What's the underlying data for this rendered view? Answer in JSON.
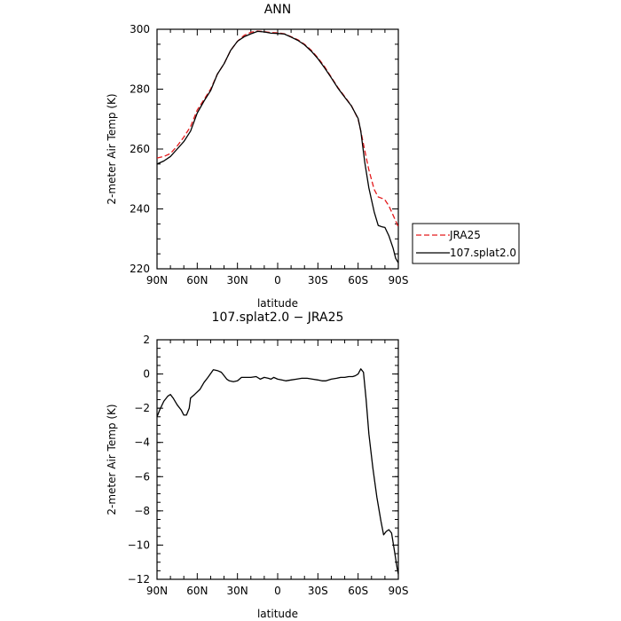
{
  "chart_data": [
    {
      "type": "line",
      "title": "ANN",
      "xlabel": "latitude",
      "ylabel": "2-meter Air Temp (K)",
      "xlim": [
        90,
        -90
      ],
      "ylim": [
        220,
        300
      ],
      "x_ticks": [
        90,
        60,
        30,
        0,
        -30,
        -60,
        -90
      ],
      "x_tick_labels": [
        "90N",
        "60N",
        "30N",
        "0",
        "30S",
        "60S",
        "90S"
      ],
      "y_ticks": [
        220,
        240,
        260,
        280,
        300
      ],
      "y_tick_labels": [
        "220",
        "240",
        "260",
        "280",
        "300"
      ],
      "grid": false,
      "legend": "right",
      "series": [
        {
          "name": "JRA25",
          "color": "#e31a1c",
          "dash": "dashed",
          "points": [
            [
              90,
              257
            ],
            [
              85,
              257.5
            ],
            [
              80,
              258.5
            ],
            [
              75,
              261
            ],
            [
              70,
              264
            ],
            [
              65,
              267.5
            ],
            [
              60,
              273
            ],
            [
              55,
              276.5
            ],
            [
              50,
              280
            ],
            [
              45,
              285
            ],
            [
              40,
              288.5
            ],
            [
              35,
              293
            ],
            [
              30,
              296
            ],
            [
              25,
              298
            ],
            [
              20,
              299
            ],
            [
              15,
              299.4
            ],
            [
              10,
              299.2
            ],
            [
              5,
              298.9
            ],
            [
              0,
              298.8
            ],
            [
              -5,
              298.5
            ],
            [
              -10,
              297.5
            ],
            [
              -15,
              296.5
            ],
            [
              -20,
              295
            ],
            [
              -25,
              293
            ],
            [
              -30,
              290.5
            ],
            [
              -35,
              287.5
            ],
            [
              -40,
              284
            ],
            [
              -45,
              280.5
            ],
            [
              -50,
              277.5
            ],
            [
              -55,
              274.5
            ],
            [
              -60,
              270
            ],
            [
              -62,
              266
            ],
            [
              -65,
              259.5
            ],
            [
              -68,
              253
            ],
            [
              -72,
              246.5
            ],
            [
              -75,
              244
            ],
            [
              -78,
              243.5
            ],
            [
              -80,
              243
            ],
            [
              -83,
              241
            ],
            [
              -86,
              238
            ],
            [
              -88,
              236
            ],
            [
              -90,
              234
            ]
          ]
        },
        {
          "name": "107.splat2.0",
          "color": "#000000",
          "dash": "solid",
          "points": [
            [
              90,
              255
            ],
            [
              85,
              256
            ],
            [
              80,
              257.5
            ],
            [
              75,
              260
            ],
            [
              70,
              262.5
            ],
            [
              65,
              266
            ],
            [
              60,
              272
            ],
            [
              55,
              276
            ],
            [
              50,
              279.5
            ],
            [
              45,
              285
            ],
            [
              40,
              288.5
            ],
            [
              35,
              293
            ],
            [
              30,
              296
            ],
            [
              25,
              297.5
            ],
            [
              20,
              298.5
            ],
            [
              15,
              299.3
            ],
            [
              10,
              299.1
            ],
            [
              5,
              298.7
            ],
            [
              0,
              298.6
            ],
            [
              -5,
              298.4
            ],
            [
              -10,
              297.4
            ],
            [
              -15,
              296.3
            ],
            [
              -20,
              294.8
            ],
            [
              -25,
              292.7
            ],
            [
              -30,
              290.2
            ],
            [
              -35,
              287.1
            ],
            [
              -40,
              283.8
            ],
            [
              -45,
              280.3
            ],
            [
              -50,
              277.3
            ],
            [
              -55,
              274.4
            ],
            [
              -60,
              270.2
            ],
            [
              -62,
              266
            ],
            [
              -65,
              255.5
            ],
            [
              -68,
              247
            ],
            [
              -72,
              239
            ],
            [
              -75,
              234.5
            ],
            [
              -78,
              234
            ],
            [
              -80,
              233.8
            ],
            [
              -83,
              231
            ],
            [
              -86,
              227
            ],
            [
              -88,
              223.5
            ],
            [
              -90,
              222
            ]
          ]
        }
      ]
    },
    {
      "type": "line",
      "title": "107.splat2.0 − JRA25",
      "xlabel": "latitude",
      "ylabel": "2-meter Air Temp (K)",
      "xlim": [
        90,
        -90
      ],
      "ylim": [
        -12,
        2
      ],
      "x_ticks": [
        90,
        60,
        30,
        0,
        -30,
        -60,
        -90
      ],
      "x_tick_labels": [
        "90N",
        "60N",
        "30N",
        "0",
        "30S",
        "60S",
        "90S"
      ],
      "y_ticks": [
        -12,
        -10,
        -8,
        -6,
        -4,
        -2,
        0,
        2
      ],
      "y_tick_labels": [
        "−12",
        "−10",
        "−8",
        "−6",
        "−4",
        "−2",
        "0",
        "2"
      ],
      "grid": false,
      "series": [
        {
          "color": "#000000",
          "dash": "solid",
          "points": [
            [
              90,
              -2.5
            ],
            [
              88,
              -2.1
            ],
            [
              85,
              -1.6
            ],
            [
              82,
              -1.3
            ],
            [
              80,
              -1.2
            ],
            [
              78,
              -1.4
            ],
            [
              75,
              -1.8
            ],
            [
              72,
              -2.1
            ],
            [
              70,
              -2.4
            ],
            [
              68,
              -2.4
            ],
            [
              66,
              -2.0
            ],
            [
              65,
              -1.4
            ],
            [
              62,
              -1.2
            ],
            [
              58,
              -0.9
            ],
            [
              55,
              -0.5
            ],
            [
              52,
              -0.2
            ],
            [
              48,
              0.25
            ],
            [
              45,
              0.2
            ],
            [
              42,
              0.1
            ],
            [
              40,
              -0.1
            ],
            [
              38,
              -0.3
            ],
            [
              36,
              -0.4
            ],
            [
              33,
              -0.45
            ],
            [
              30,
              -0.4
            ],
            [
              27,
              -0.2
            ],
            [
              24,
              -0.2
            ],
            [
              20,
              -0.2
            ],
            [
              16,
              -0.15
            ],
            [
              13,
              -0.3
            ],
            [
              10,
              -0.2
            ],
            [
              7,
              -0.25
            ],
            [
              5,
              -0.3
            ],
            [
              3,
              -0.2
            ],
            [
              0,
              -0.3
            ],
            [
              -3,
              -0.35
            ],
            [
              -6,
              -0.4
            ],
            [
              -10,
              -0.35
            ],
            [
              -14,
              -0.3
            ],
            [
              -18,
              -0.25
            ],
            [
              -22,
              -0.25
            ],
            [
              -26,
              -0.3
            ],
            [
              -30,
              -0.35
            ],
            [
              -33,
              -0.4
            ],
            [
              -36,
              -0.4
            ],
            [
              -40,
              -0.3
            ],
            [
              -44,
              -0.25
            ],
            [
              -47,
              -0.2
            ],
            [
              -50,
              -0.2
            ],
            [
              -53,
              -0.15
            ],
            [
              -56,
              -0.15
            ],
            [
              -58,
              -0.1
            ],
            [
              -60,
              0.0
            ],
            [
              -62,
              0.3
            ],
            [
              -64,
              0.1
            ],
            [
              -66,
              -1.5
            ],
            [
              -68,
              -3.5
            ],
            [
              -71,
              -5.5
            ],
            [
              -74,
              -7.2
            ],
            [
              -77,
              -8.6
            ],
            [
              -79,
              -9.4
            ],
            [
              -81,
              -9.2
            ],
            [
              -83,
              -9.1
            ],
            [
              -85,
              -9.3
            ],
            [
              -87,
              -10.3
            ],
            [
              -89,
              -11.3
            ],
            [
              -90,
              -11.7
            ]
          ]
        }
      ]
    }
  ]
}
